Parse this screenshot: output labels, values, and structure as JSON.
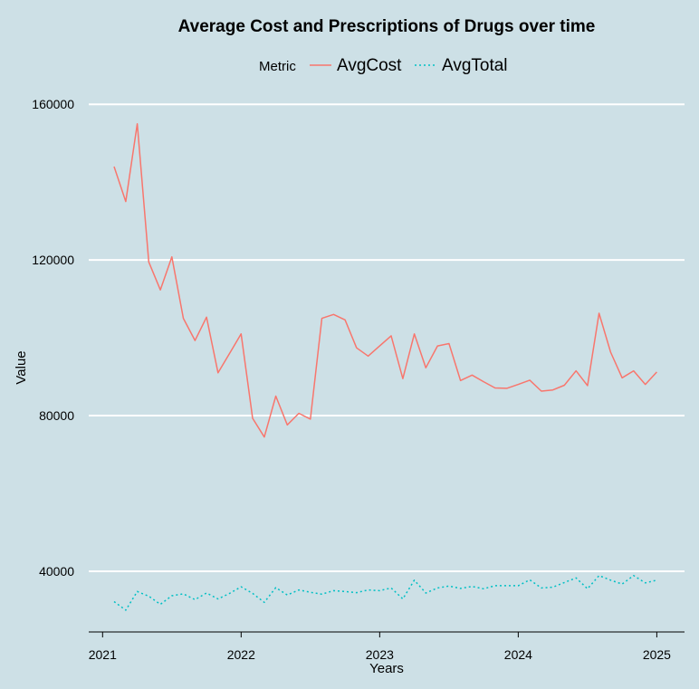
{
  "chart_data": {
    "type": "line",
    "title": "Average Cost and Prescriptions of Drugs over time",
    "xlabel": "Years",
    "ylabel": "Value",
    "legend": {
      "title": "Metric",
      "placement": "top"
    },
    "grid": "horizontal-major",
    "x_ticks": [
      "2021",
      "2022",
      "2023",
      "2024",
      "2025"
    ],
    "y_ticks": [
      "40000",
      "80000",
      "120000",
      "160000"
    ],
    "xlim": [
      2020.9,
      2025.2
    ],
    "ylim": [
      24400,
      164000
    ],
    "x_tick_values": [
      2021,
      2022,
      2023,
      2024,
      2025
    ],
    "y_tick_values": [
      40000,
      80000,
      120000,
      160000
    ],
    "series": [
      {
        "name": "AvgCost",
        "color": "#f8766d",
        "dash": "solid",
        "x": [
          2021.083,
          2021.167,
          2021.25,
          2021.333,
          2021.417,
          2021.5,
          2021.583,
          2021.667,
          2021.75,
          2021.833,
          2021.917,
          2022.0,
          2022.083,
          2022.167,
          2022.25,
          2022.333,
          2022.417,
          2022.5,
          2022.583,
          2022.667,
          2022.75,
          2022.833,
          2022.917,
          2023.0,
          2023.083,
          2023.167,
          2023.25,
          2023.333,
          2023.417,
          2023.5,
          2023.583,
          2023.667,
          2023.75,
          2023.833,
          2023.917,
          2024.0,
          2024.083,
          2024.167,
          2024.25,
          2024.333,
          2024.417,
          2024.5,
          2024.583,
          2024.667,
          2024.75,
          2024.833,
          2024.917,
          2025.0
        ],
        "values": [
          144000,
          135000,
          155000,
          119500,
          112300,
          120800,
          105000,
          99300,
          105300,
          91000,
          96000,
          101000,
          79300,
          74500,
          85000,
          77600,
          80600,
          79100,
          105000,
          106000,
          104600,
          97400,
          95300,
          97900,
          100500,
          89500,
          101000,
          92300,
          97900,
          98500,
          89000,
          90400,
          88700,
          87100,
          87000,
          88000,
          89100,
          86300,
          86600,
          87800,
          91500,
          87700,
          106300,
          96300,
          89700,
          91500,
          88000,
          91200
        ]
      },
      {
        "name": "AvgTotal",
        "color": "#00bfc4",
        "dash": "dotted",
        "x": [
          2021.083,
          2021.167,
          2021.25,
          2021.333,
          2021.417,
          2021.5,
          2021.583,
          2021.667,
          2021.75,
          2021.833,
          2021.917,
          2022.0,
          2022.083,
          2022.167,
          2022.25,
          2022.333,
          2022.417,
          2022.5,
          2022.583,
          2022.667,
          2022.75,
          2022.833,
          2022.917,
          2023.0,
          2023.083,
          2023.167,
          2023.25,
          2023.333,
          2023.417,
          2023.5,
          2023.583,
          2023.667,
          2023.75,
          2023.833,
          2023.917,
          2024.0,
          2024.083,
          2024.167,
          2024.25,
          2024.333,
          2024.417,
          2024.5,
          2024.583,
          2024.667,
          2024.75,
          2024.833,
          2024.917,
          2025.0
        ],
        "values": [
          32200,
          30000,
          34800,
          33600,
          31500,
          33700,
          34200,
          32700,
          34400,
          32900,
          34300,
          36000,
          34300,
          32000,
          35800,
          33900,
          35200,
          34600,
          34100,
          35000,
          34800,
          34500,
          35200,
          35000,
          35700,
          32900,
          37700,
          34400,
          35700,
          36200,
          35600,
          36100,
          35500,
          36300,
          36300,
          36300,
          37800,
          35700,
          35900,
          37100,
          38300,
          35500,
          38900,
          37700,
          36700,
          38900,
          37000,
          37700
        ]
      }
    ]
  }
}
